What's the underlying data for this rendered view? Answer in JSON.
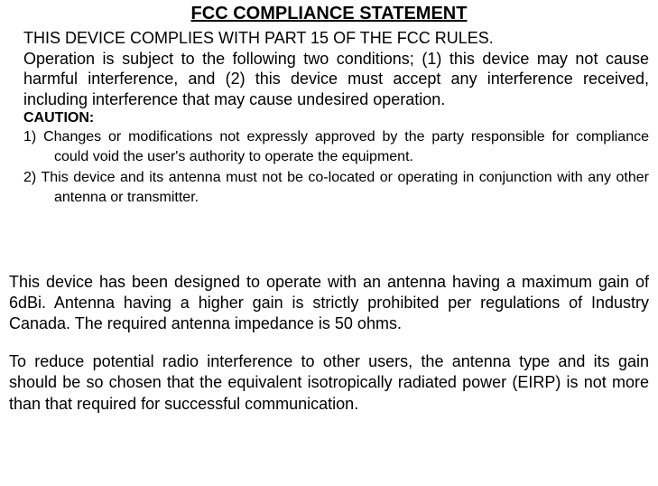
{
  "title": "FCC COMPLIANCE STATEMENT",
  "line1": "THIS DEVICE COMPLIES WITH PART 15 OF THE FCC RULES.",
  "para1": "Operation is subject to the following two conditions; (1) this device may not cause harmful interference, and (2) this device must accept any interference received, including interference that may cause undesired operation.",
  "caution_label": "CAUTION:",
  "caution_items": [
    "1) Changes or modifications not expressly approved by the party responsible for compliance could void the user's authority to operate the equipment.",
    "2) This device and its antenna must not be co-located or operating in conjunction with any other antenna or transmitter."
  ],
  "para2": "This device has been designed to operate with an antenna having a maximum gain of 6dBi. Antenna having a higher gain is strictly prohibited per regulations of Industry Canada. The required antenna impedance is 50 ohms.",
  "para3": "To reduce potential radio interference to other users, the antenna type and its gain should be so chosen that the equivalent isotropically radiated power (EIRP) is not more than that required for successful communication."
}
